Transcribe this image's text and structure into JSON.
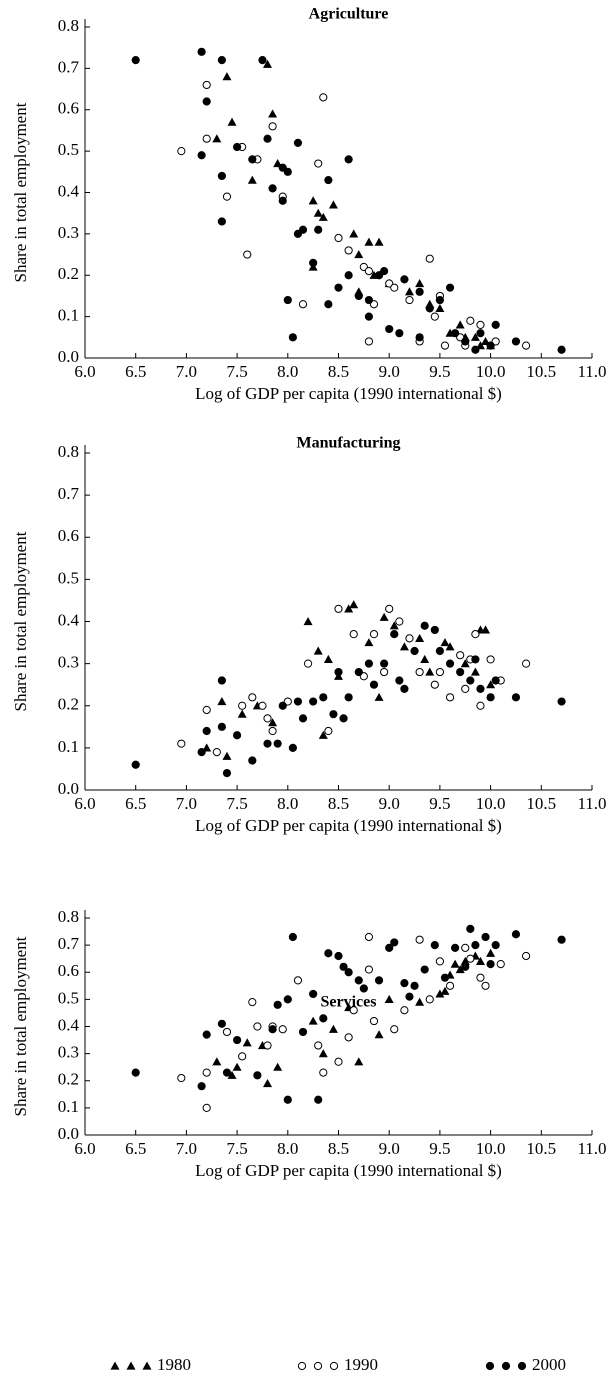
{
  "chart_data": [
    {
      "type": "scatter",
      "title": "Agriculture",
      "xlabel": "Log of GDP per capita (1990 international $)",
      "ylabel": "Share in total employment",
      "xlim": [
        6,
        11
      ],
      "ylim": [
        0,
        0.8
      ],
      "xticks": [
        {
          "value": 6,
          "label": "6.0"
        },
        6.5,
        {
          "value": 7,
          "label": "7.0"
        },
        7.5,
        {
          "value": 8,
          "label": "8.0"
        },
        8.5,
        {
          "value": 9,
          "label": "9.0"
        },
        9.5,
        {
          "value": 10,
          "label": "10.0"
        },
        10.5,
        {
          "value": 11,
          "label": "11.0"
        }
      ],
      "yticks": [
        {
          "value": 0,
          "label": "0.0"
        },
        0.1,
        0.2,
        0.3,
        0.4,
        0.5,
        0.6,
        0.7,
        0.8
      ],
      "series": [
        {
          "name": "1980",
          "marker": "triangle",
          "color": "#000",
          "x": [
            7.4,
            7.8,
            7.45,
            7.3,
            7.85,
            7.65,
            7.9,
            8.25,
            8.35,
            8.45,
            8.3,
            8.65,
            8.8,
            8.9,
            8.25,
            8.7,
            8.85,
            9.0,
            9.3,
            9.5,
            9.7,
            9.75,
            9.85,
            9.9,
            9.6,
            8.7,
            9.2,
            9.4,
            10.0,
            9.95
          ],
          "y": [
            0.68,
            0.71,
            0.57,
            0.53,
            0.59,
            0.43,
            0.47,
            0.38,
            0.34,
            0.37,
            0.35,
            0.3,
            0.28,
            0.28,
            0.22,
            0.25,
            0.2,
            0.18,
            0.18,
            0.12,
            0.08,
            0.05,
            0.05,
            0.03,
            0.06,
            0.16,
            0.16,
            0.13,
            0.03,
            0.04
          ]
        },
        {
          "name": "1990",
          "marker": "circle-open",
          "color": "#000",
          "x": [
            6.95,
            7.2,
            7.2,
            7.55,
            7.4,
            7.6,
            7.7,
            7.85,
            7.95,
            8.15,
            8.35,
            8.3,
            8.5,
            8.6,
            8.75,
            8.8,
            8.8,
            8.85,
            9.0,
            9.05,
            9.2,
            9.4,
            9.45,
            9.5,
            9.55,
            9.7,
            9.8,
            9.9,
            10.05,
            10.35,
            9.75,
            9.3
          ],
          "y": [
            0.5,
            0.66,
            0.53,
            0.51,
            0.39,
            0.25,
            0.48,
            0.56,
            0.39,
            0.13,
            0.63,
            0.47,
            0.29,
            0.26,
            0.22,
            0.21,
            0.04,
            0.13,
            0.18,
            0.17,
            0.14,
            0.24,
            0.1,
            0.15,
            0.03,
            0.05,
            0.09,
            0.08,
            0.04,
            0.03,
            0.03,
            0.04
          ]
        },
        {
          "name": "2000",
          "marker": "circle",
          "color": "#000",
          "x": [
            6.5,
            7.15,
            7.35,
            7.75,
            7.2,
            7.15,
            7.35,
            7.35,
            7.5,
            7.65,
            7.8,
            7.95,
            8.0,
            8.1,
            7.85,
            7.95,
            8.15,
            8.1,
            8.25,
            8.3,
            8.4,
            8.6,
            8.5,
            8.6,
            8.7,
            8.8,
            8.9,
            8.95,
            9.0,
            9.1,
            9.15,
            9.3,
            9.4,
            9.5,
            9.6,
            9.65,
            9.75,
            9.85,
            9.9,
            10.0,
            10.05,
            10.25,
            10.7,
            8.0,
            8.05,
            8.4,
            8.8,
            9.3
          ],
          "y": [
            0.72,
            0.74,
            0.72,
            0.72,
            0.62,
            0.49,
            0.44,
            0.33,
            0.51,
            0.48,
            0.53,
            0.46,
            0.45,
            0.52,
            0.41,
            0.38,
            0.31,
            0.3,
            0.23,
            0.31,
            0.43,
            0.48,
            0.17,
            0.2,
            0.15,
            0.14,
            0.2,
            0.21,
            0.07,
            0.06,
            0.19,
            0.16,
            0.12,
            0.14,
            0.17,
            0.06,
            0.04,
            0.02,
            0.06,
            0.03,
            0.08,
            0.04,
            0.02,
            0.14,
            0.05,
            0.13,
            0.1,
            0.05
          ]
        }
      ]
    },
    {
      "type": "scatter",
      "title": "Manufacturing",
      "xlabel": "Log of GDP per capita (1990 international $)",
      "ylabel": "Share in total employment",
      "xlim": [
        6,
        11
      ],
      "ylim": [
        0,
        0.8
      ],
      "xticks": [
        {
          "value": 6,
          "label": "6.0"
        },
        6.5,
        {
          "value": 7,
          "label": "7.0"
        },
        7.5,
        {
          "value": 8,
          "label": "8.0"
        },
        8.5,
        {
          "value": 9,
          "label": "9.0"
        },
        9.5,
        {
          "value": 10,
          "label": "10.0"
        },
        10.5,
        {
          "value": 11,
          "label": "11.0"
        }
      ],
      "yticks": [
        {
          "value": 0,
          "label": "0.0"
        },
        0.1,
        0.2,
        0.3,
        0.4,
        0.5,
        0.6,
        0.7,
        0.8
      ],
      "series": [
        {
          "name": "1980",
          "marker": "triangle",
          "color": "#000",
          "x": [
            7.35,
            7.4,
            7.2,
            7.7,
            7.85,
            8.2,
            8.3,
            8.4,
            8.6,
            8.65,
            8.8,
            8.95,
            9.05,
            9.15,
            9.3,
            9.35,
            9.55,
            9.6,
            9.9,
            9.95,
            9.85,
            9.75,
            10.0,
            8.5,
            8.9,
            9.4,
            8.35,
            7.55
          ],
          "y": [
            0.21,
            0.08,
            0.1,
            0.2,
            0.16,
            0.4,
            0.33,
            0.31,
            0.43,
            0.44,
            0.35,
            0.41,
            0.39,
            0.34,
            0.36,
            0.31,
            0.35,
            0.34,
            0.38,
            0.38,
            0.28,
            0.3,
            0.25,
            0.27,
            0.22,
            0.28,
            0.13,
            0.18
          ]
        },
        {
          "name": "1990",
          "marker": "circle-open",
          "color": "#000",
          "x": [
            6.95,
            7.2,
            7.3,
            7.55,
            7.65,
            7.75,
            7.8,
            7.85,
            8.0,
            8.2,
            8.4,
            8.5,
            8.65,
            8.75,
            8.85,
            8.95,
            9.0,
            9.1,
            9.2,
            9.3,
            9.45,
            9.5,
            9.7,
            9.8,
            9.85,
            10.0,
            10.1,
            10.35,
            9.6,
            9.75,
            9.9
          ],
          "y": [
            0.11,
            0.19,
            0.09,
            0.2,
            0.22,
            0.2,
            0.17,
            0.14,
            0.21,
            0.3,
            0.14,
            0.43,
            0.37,
            0.27,
            0.37,
            0.28,
            0.43,
            0.4,
            0.36,
            0.28,
            0.25,
            0.28,
            0.32,
            0.31,
            0.37,
            0.31,
            0.26,
            0.3,
            0.22,
            0.24,
            0.2
          ]
        },
        {
          "name": "2000",
          "marker": "circle",
          "color": "#000",
          "x": [
            6.5,
            7.15,
            7.2,
            7.35,
            7.4,
            7.35,
            7.5,
            7.65,
            7.8,
            7.9,
            7.95,
            8.05,
            8.1,
            8.15,
            8.25,
            8.35,
            8.45,
            8.5,
            8.6,
            8.7,
            8.8,
            8.85,
            8.95,
            9.05,
            9.15,
            9.25,
            9.35,
            9.45,
            9.5,
            9.6,
            9.7,
            9.8,
            9.85,
            9.9,
            10.0,
            10.05,
            10.25,
            10.7,
            8.55,
            9.1
          ],
          "y": [
            0.06,
            0.09,
            0.14,
            0.26,
            0.04,
            0.15,
            0.13,
            0.07,
            0.11,
            0.11,
            0.2,
            0.1,
            0.21,
            0.17,
            0.21,
            0.22,
            0.18,
            0.28,
            0.22,
            0.28,
            0.3,
            0.25,
            0.3,
            0.37,
            0.24,
            0.33,
            0.39,
            0.38,
            0.33,
            0.3,
            0.28,
            0.26,
            0.31,
            0.24,
            0.22,
            0.26,
            0.22,
            0.21,
            0.17,
            0.26
          ]
        }
      ]
    },
    {
      "type": "scatter",
      "title": "Services",
      "xlabel": "Log of GDP per capita (1990 international $)",
      "ylabel": "Share in total employment",
      "xlim": [
        6,
        11
      ],
      "ylim": [
        0,
        0.8
      ],
      "legend": "bottom",
      "xticks": [
        {
          "value": 6,
          "label": "6.0"
        },
        6.5,
        {
          "value": 7,
          "label": "7.0"
        },
        7.5,
        {
          "value": 8,
          "label": "8.0"
        },
        8.5,
        {
          "value": 9,
          "label": "9.0"
        },
        9.5,
        {
          "value": 10,
          "label": "10.0"
        },
        10.5,
        {
          "value": 11,
          "label": "11.0"
        }
      ],
      "yticks": [
        {
          "value": 0,
          "label": "0.0"
        },
        0.1,
        0.2,
        0.3,
        0.4,
        0.5,
        0.6,
        0.7,
        0.8
      ],
      "series": [
        {
          "name": "1980",
          "marker": "triangle",
          "color": "#000",
          "x": [
            7.3,
            7.45,
            7.6,
            7.75,
            7.8,
            7.9,
            8.25,
            8.35,
            8.45,
            8.7,
            8.9,
            9.0,
            9.3,
            9.5,
            9.6,
            9.65,
            9.75,
            9.85,
            9.9,
            10.0,
            9.55,
            9.7,
            8.6,
            7.5
          ],
          "y": [
            0.27,
            0.22,
            0.34,
            0.33,
            0.19,
            0.25,
            0.42,
            0.3,
            0.39,
            0.27,
            0.37,
            0.5,
            0.49,
            0.52,
            0.59,
            0.63,
            0.64,
            0.66,
            0.64,
            0.67,
            0.53,
            0.61,
            0.47,
            0.25
          ]
        },
        {
          "name": "1990",
          "marker": "circle-open",
          "color": "#000",
          "x": [
            6.95,
            7.2,
            7.2,
            7.4,
            7.55,
            7.65,
            7.7,
            7.8,
            7.85,
            7.95,
            8.1,
            8.35,
            8.5,
            8.6,
            8.65,
            8.8,
            8.85,
            8.8,
            9.05,
            9.15,
            9.3,
            9.4,
            9.5,
            9.6,
            9.75,
            9.8,
            9.9,
            9.95,
            10.1,
            10.35,
            8.3
          ],
          "y": [
            0.21,
            0.1,
            0.23,
            0.38,
            0.29,
            0.49,
            0.4,
            0.33,
            0.4,
            0.39,
            0.57,
            0.23,
            0.27,
            0.36,
            0.46,
            0.73,
            0.42,
            0.61,
            0.39,
            0.46,
            0.72,
            0.5,
            0.64,
            0.55,
            0.69,
            0.65,
            0.58,
            0.55,
            0.63,
            0.66,
            0.33
          ]
        },
        {
          "name": "2000",
          "marker": "circle",
          "color": "#000",
          "x": [
            6.5,
            7.15,
            7.2,
            7.35,
            7.4,
            7.5,
            7.7,
            7.85,
            7.9,
            8.0,
            8.05,
            8.0,
            8.15,
            8.25,
            8.3,
            8.35,
            8.4,
            8.5,
            8.6,
            8.7,
            8.75,
            8.9,
            9.0,
            9.05,
            9.15,
            9.25,
            9.35,
            9.45,
            9.55,
            9.65,
            9.8,
            9.85,
            9.95,
            10.0,
            10.05,
            10.25,
            10.7,
            9.75,
            9.2,
            8.55
          ],
          "y": [
            0.23,
            0.18,
            0.37,
            0.41,
            0.23,
            0.35,
            0.22,
            0.39,
            0.48,
            0.5,
            0.73,
            0.13,
            0.38,
            0.52,
            0.13,
            0.43,
            0.67,
            0.66,
            0.6,
            0.57,
            0.54,
            0.57,
            0.69,
            0.71,
            0.56,
            0.55,
            0.61,
            0.7,
            0.58,
            0.69,
            0.76,
            0.7,
            0.73,
            0.63,
            0.7,
            0.74,
            0.72,
            0.62,
            0.51,
            0.62
          ]
        }
      ]
    }
  ]
}
